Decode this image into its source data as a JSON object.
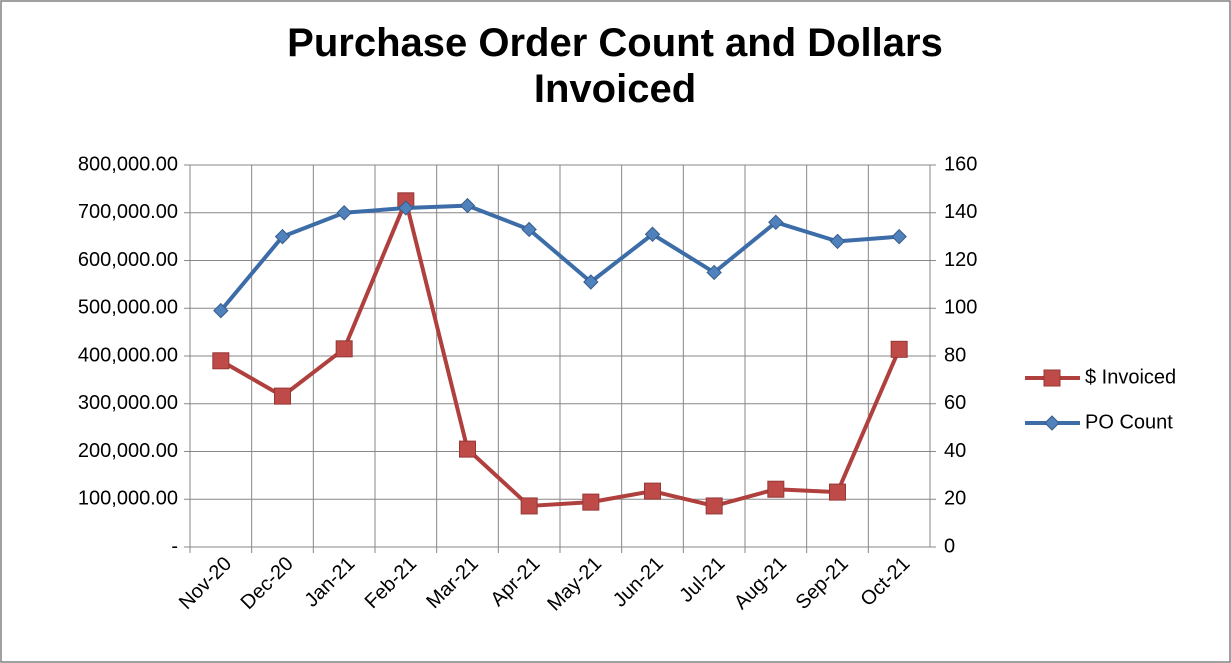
{
  "chart_data": {
    "type": "line",
    "title": "Purchase Order Count and Dollars Invoiced",
    "categories": [
      "Nov-20",
      "Dec-20",
      "Jan-21",
      "Feb-21",
      "Mar-21",
      "Apr-21",
      "May-21",
      "Jun-21",
      "Jul-21",
      "Aug-21",
      "Sep-21",
      "Oct-21"
    ],
    "series": [
      {
        "name": "$ Invoiced",
        "color": "#be4b48",
        "marker": "square",
        "axis": "y",
        "values": [
          390000,
          316000,
          415000,
          725000,
          205000,
          86000,
          94000,
          117000,
          86000,
          121000,
          115000,
          414000
        ]
      },
      {
        "name": "PO Count",
        "color": "#4f81bd",
        "marker": "diamond",
        "axis": "y2",
        "values": [
          99,
          130,
          140,
          142,
          143,
          133,
          111,
          131,
          115,
          136,
          128,
          130
        ]
      }
    ],
    "ylim": [
      0,
      800000
    ],
    "yticks": [
      {
        "value": 0,
        "label": "-"
      },
      {
        "value": 100000,
        "label": "100,000.00"
      },
      {
        "value": 200000,
        "label": "200,000.00"
      },
      {
        "value": 300000,
        "label": "300,000.00"
      },
      {
        "value": 400000,
        "label": "400,000.00"
      },
      {
        "value": 500000,
        "label": "500,000.00"
      },
      {
        "value": 600000,
        "label": "600,000.00"
      },
      {
        "value": 700000,
        "label": "700,000.00"
      },
      {
        "value": 800000,
        "label": "800,000.00"
      }
    ],
    "y2lim": [
      0,
      160
    ],
    "y2ticks": [
      0,
      20,
      40,
      60,
      80,
      100,
      120,
      140,
      160
    ],
    "grid": true,
    "legend": "right"
  }
}
